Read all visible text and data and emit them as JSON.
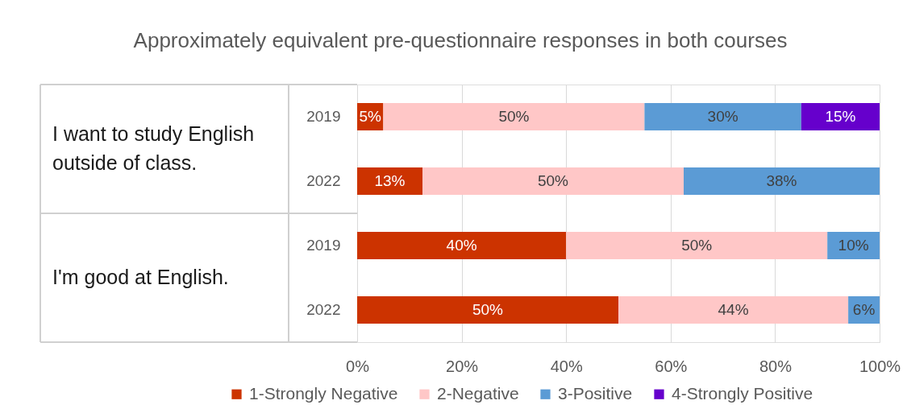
{
  "chart_data": {
    "type": "bar",
    "orientation": "horizontal",
    "stacked": true,
    "title": "Approximately equivalent pre-questionnaire responses in both courses",
    "categories": [
      "2019",
      "2022",
      "2019",
      "2022"
    ],
    "annotations": [
      "I want to study English outside of class.",
      "I'm good at English."
    ],
    "series": [
      {
        "name": "1-Strongly Negative",
        "color": "#cc3300",
        "values": [
          5,
          12.5,
          40,
          50
        ],
        "value_labels": [
          "5%",
          "13%",
          "40%",
          "50%"
        ]
      },
      {
        "name": "2-Negative",
        "color": "#ffc7c7",
        "values": [
          50,
          50,
          50,
          44
        ],
        "value_labels": [
          "50%",
          "50%",
          "50%",
          "44%"
        ]
      },
      {
        "name": "3-Positive",
        "color": "#5b9bd5",
        "values": [
          30,
          37.5,
          10,
          6
        ],
        "value_labels": [
          "30%",
          "38%",
          "10%",
          "6%"
        ]
      },
      {
        "name": "4-Strongly Positive",
        "color": "#6600cc",
        "values": [
          15,
          null,
          null,
          null
        ],
        "value_labels": [
          "15%",
          null,
          null,
          null
        ]
      }
    ],
    "xlim": [
      0,
      100
    ],
    "xticks": [
      {
        "value": 0,
        "label": "0%"
      },
      {
        "value": 20,
        "label": "20%"
      },
      {
        "value": 40,
        "label": "40%"
      },
      {
        "value": 60,
        "label": "60%"
      },
      {
        "value": 80,
        "label": "80%"
      },
      {
        "value": 100,
        "label": "100%"
      }
    ],
    "grid": "x",
    "legend": "bottom"
  }
}
